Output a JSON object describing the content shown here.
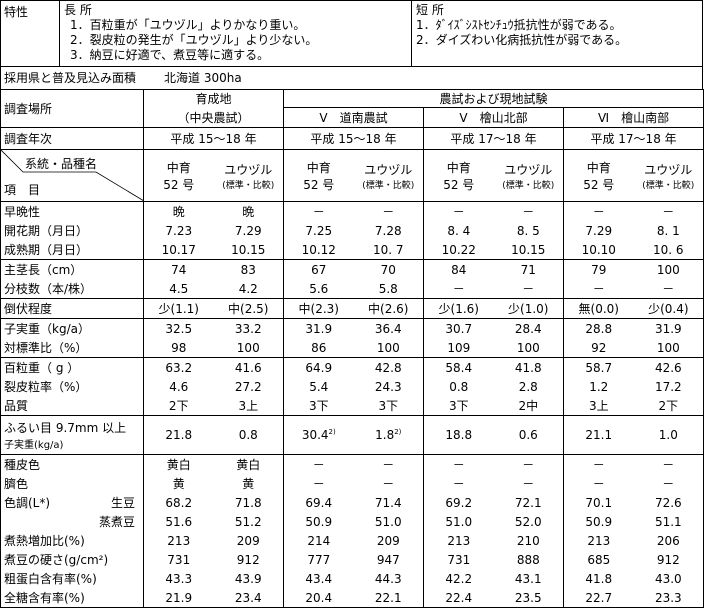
{
  "traits": {
    "label": "特性",
    "merits_title": "長 所",
    "merits": [
      "1．百粒重が「ユウヅル」よりかなり重い。",
      "2．裂皮粒の発生が「ユウヅル」より少ない。",
      "3．納豆に好適で、煮豆等に適する。"
    ],
    "demerits_title": "短 所",
    "demerits": [
      "1．ﾀﾞｲｽﾞｼｽﾄｾﾝﾁｭｳ抵抗性が弱である。",
      "2．ダイズわい化病抵抗性が弱である。"
    ]
  },
  "adoption": {
    "label": "採用県と普及見込み面積",
    "value": "北海道 300ha"
  },
  "header": {
    "site_label": "調査場所",
    "home_site": "育成地",
    "home_site_sub": "（中央農試）",
    "trials": "農試および現地試験",
    "sites": [
      "Ⅴ　道南農試",
      "Ⅴ　檜山北部",
      "Ⅵ　檜山南部"
    ],
    "year_label": "調査年次",
    "years": [
      "平成 15～18 年",
      "平成 15～18 年",
      "平成 17～18 年",
      "平成 17～18 年"
    ],
    "variety_label": "系統・品種名",
    "item_label": "項　目",
    "line1": "中育",
    "line1b": "52 号",
    "check": "ユウヅル",
    "check_sub": "(標準・比較)"
  },
  "groups": [
    [
      {
        "label": "早晩性",
        "v": [
          "晩",
          "晩",
          "－",
          "－",
          "－",
          "－",
          "－",
          "－"
        ]
      },
      {
        "label": "開花期（月日）",
        "v": [
          "7.23",
          "7.29",
          "7.25",
          "7.28",
          "8. 4",
          "8. 5",
          "7.29",
          "8. 1"
        ]
      },
      {
        "label": "成熟期（月日）",
        "v": [
          "10.17",
          "10.15",
          "10.12",
          "10. 7",
          "10.22",
          "10.15",
          "10.10",
          "10. 6"
        ]
      }
    ],
    [
      {
        "label": "主茎長（cm）",
        "v": [
          "74",
          "83",
          "67",
          "70",
          "84",
          "71",
          "79",
          "100"
        ]
      },
      {
        "label": "分枝数（本/株）",
        "v": [
          "4.5",
          "4.2",
          "5.6",
          "5.8",
          "－",
          "－",
          "－",
          "－"
        ]
      }
    ],
    [
      {
        "label": "倒伏程度",
        "v": [
          "少(1.1)",
          "中(2.5)",
          "中(2.3)",
          "中(2.6)",
          "少(1.6)",
          "少(1.0)",
          "無(0.0)",
          "少(0.4)"
        ]
      }
    ],
    [
      {
        "label": "子実重（kg/a）",
        "v": [
          "32.5",
          "33.2",
          "31.9",
          "36.4",
          "30.7",
          "28.4",
          "28.8",
          "31.9"
        ]
      },
      {
        "label": "対標準比（%）",
        "v": [
          "98",
          "100",
          "86",
          "100",
          "109",
          "100",
          "92",
          "100"
        ]
      }
    ],
    [
      {
        "label": "百粒重（ g ）",
        "v": [
          "63.2",
          "41.6",
          "64.9",
          "42.8",
          "58.4",
          "41.8",
          "58.7",
          "42.6"
        ]
      },
      {
        "label": "裂皮粒率（%）",
        "v": [
          "4.6",
          "27.2",
          "5.4",
          "24.3",
          "0.8",
          "2.8",
          "1.2",
          "17.2"
        ]
      },
      {
        "label": "品質",
        "v": [
          "2下",
          "3上",
          "3下",
          "3下",
          "3下",
          "2中",
          "3上",
          "2下"
        ]
      }
    ],
    [
      {
        "label": "ふるい目 9.7mm 以上",
        "label2": "子実重(kg/a)",
        "v": [
          "21.8",
          "0.8",
          "30.4",
          "1.8",
          "18.8",
          "0.6",
          "21.1",
          "1.0"
        ],
        "notes": [
          "",
          "",
          "2)",
          "2)",
          "",
          "",
          "",
          ""
        ]
      }
    ],
    [
      {
        "label": "種皮色",
        "v": [
          "黄白",
          "黄白",
          "－",
          "－",
          "－",
          "－",
          "－",
          "－"
        ]
      },
      {
        "label": "臍色",
        "v": [
          "黄",
          "黄",
          "－",
          "－",
          "－",
          "－",
          "－",
          "－"
        ]
      },
      {
        "label": "色調(L*)",
        "sub": "生豆",
        "v": [
          "68.2",
          "71.8",
          "69.4",
          "71.4",
          "69.2",
          "72.1",
          "70.1",
          "72.6"
        ]
      },
      {
        "label": "",
        "sub": "蒸煮豆",
        "v": [
          "51.6",
          "51.2",
          "50.9",
          "51.0",
          "51.0",
          "52.0",
          "50.9",
          "51.1"
        ]
      },
      {
        "label": "煮熱増加比(%)",
        "v": [
          "213",
          "209",
          "214",
          "209",
          "213",
          "210",
          "213",
          "206"
        ]
      },
      {
        "label": "煮豆の硬さ(g/cm²)",
        "v": [
          "731",
          "912",
          "777",
          "947",
          "731",
          "888",
          "685",
          "912"
        ]
      },
      {
        "label": "粗蛋白含有率(%)",
        "v": [
          "43.3",
          "43.9",
          "43.4",
          "44.3",
          "42.2",
          "43.1",
          "41.8",
          "43.0"
        ]
      },
      {
        "label": "全糖含有率(%)",
        "v": [
          "21.9",
          "23.4",
          "20.4",
          "22.1",
          "22.4",
          "23.5",
          "22.7",
          "23.3"
        ]
      }
    ]
  ]
}
